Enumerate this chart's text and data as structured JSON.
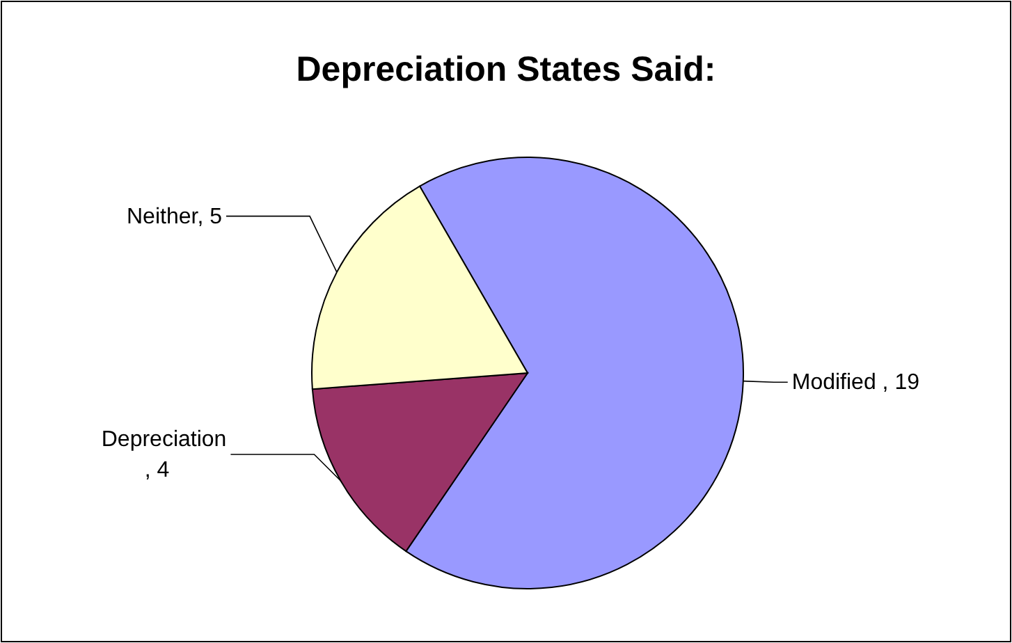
{
  "chart_data": {
    "type": "pie",
    "title": "Depreciation States Said:",
    "categories": [
      "Modified ",
      "Depreciation ",
      "Neither"
    ],
    "values": [
      19,
      4,
      5
    ],
    "value_labels": [
      ", 19",
      ", 4",
      ", 5"
    ],
    "colors": [
      "#9999ff",
      "#993366",
      "#ffffcc"
    ]
  }
}
